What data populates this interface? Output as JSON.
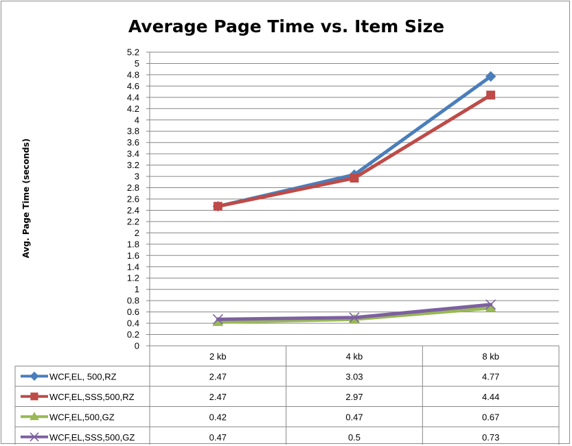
{
  "chart_data": {
    "type": "line",
    "title": "Average Page Time vs. Item Size",
    "xlabel": "",
    "ylabel": "Avg. Page Time (seconds)",
    "ylim": [
      0,
      5.2
    ],
    "ytick_step": 0.2,
    "grid": true,
    "legend": "data-table-bottom",
    "categories": [
      "2 kb",
      "4 kb",
      "8 kb"
    ],
    "series": [
      {
        "name": "WCF,EL, 500,RZ",
        "values": [
          2.47,
          3.03,
          4.77
        ],
        "color": "#4a7ebb",
        "marker": "diamond"
      },
      {
        "name": "WCF,EL,SSS,500,RZ",
        "values": [
          2.47,
          2.97,
          4.44
        ],
        "color": "#be4b48",
        "marker": "square"
      },
      {
        "name": "WCF,EL,500,GZ",
        "values": [
          0.42,
          0.47,
          0.67
        ],
        "color": "#98b954",
        "marker": "triangle"
      },
      {
        "name": "WCF,EL,SSS,500,GZ",
        "values": [
          0.47,
          0.5,
          0.73
        ],
        "color": "#7d60a0",
        "marker": "x"
      }
    ],
    "table_labels": [
      [
        "2.47",
        "3.03",
        "4.77"
      ],
      [
        "2.47",
        "2.97",
        "4.44"
      ],
      [
        "0.42",
        "0.47",
        "0.67"
      ],
      [
        "0.47",
        "0.5",
        "0.73"
      ]
    ],
    "ytick_labels": [
      "0",
      "0.2",
      "0.4",
      "0.6",
      "0.8",
      "1",
      "1.2",
      "1.4",
      "1.6",
      "1.8",
      "2",
      "2.2",
      "2.4",
      "2.6",
      "2.8",
      "3",
      "3.2",
      "3.4",
      "3.6",
      "3.8",
      "4",
      "4.2",
      "4.4",
      "4.6",
      "4.8",
      "5",
      "5.2"
    ]
  }
}
